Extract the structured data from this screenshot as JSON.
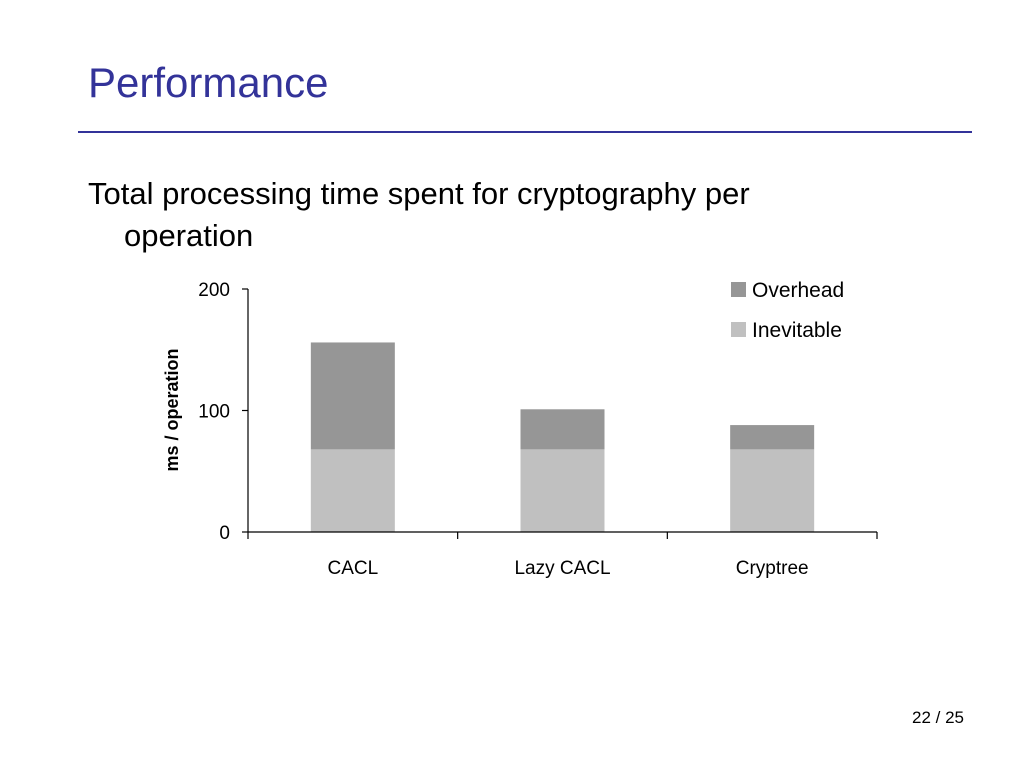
{
  "slide": {
    "title": "Performance",
    "body": "Total processing time spent for cryptography per operation",
    "page_number": "22 / 25"
  },
  "colors": {
    "title": "#333399",
    "rule": "#333399",
    "overhead": "#969696",
    "inevitable": "#c0c0c0"
  },
  "chart_data": {
    "type": "bar",
    "stacked": true,
    "categories": [
      "CACL",
      "Lazy CACL",
      "Cryptree"
    ],
    "series": [
      {
        "name": "Inevitable",
        "values": [
          68,
          68,
          68
        ]
      },
      {
        "name": "Overhead",
        "values": [
          88,
          33,
          20
        ]
      }
    ],
    "title": "",
    "xlabel": "",
    "ylabel": "ms / operation",
    "ylim": [
      0,
      200
    ],
    "yticks": [
      0,
      100,
      200
    ],
    "grid": false,
    "legend_position": "top-right",
    "legend_order": [
      "Overhead",
      "Inevitable"
    ]
  }
}
